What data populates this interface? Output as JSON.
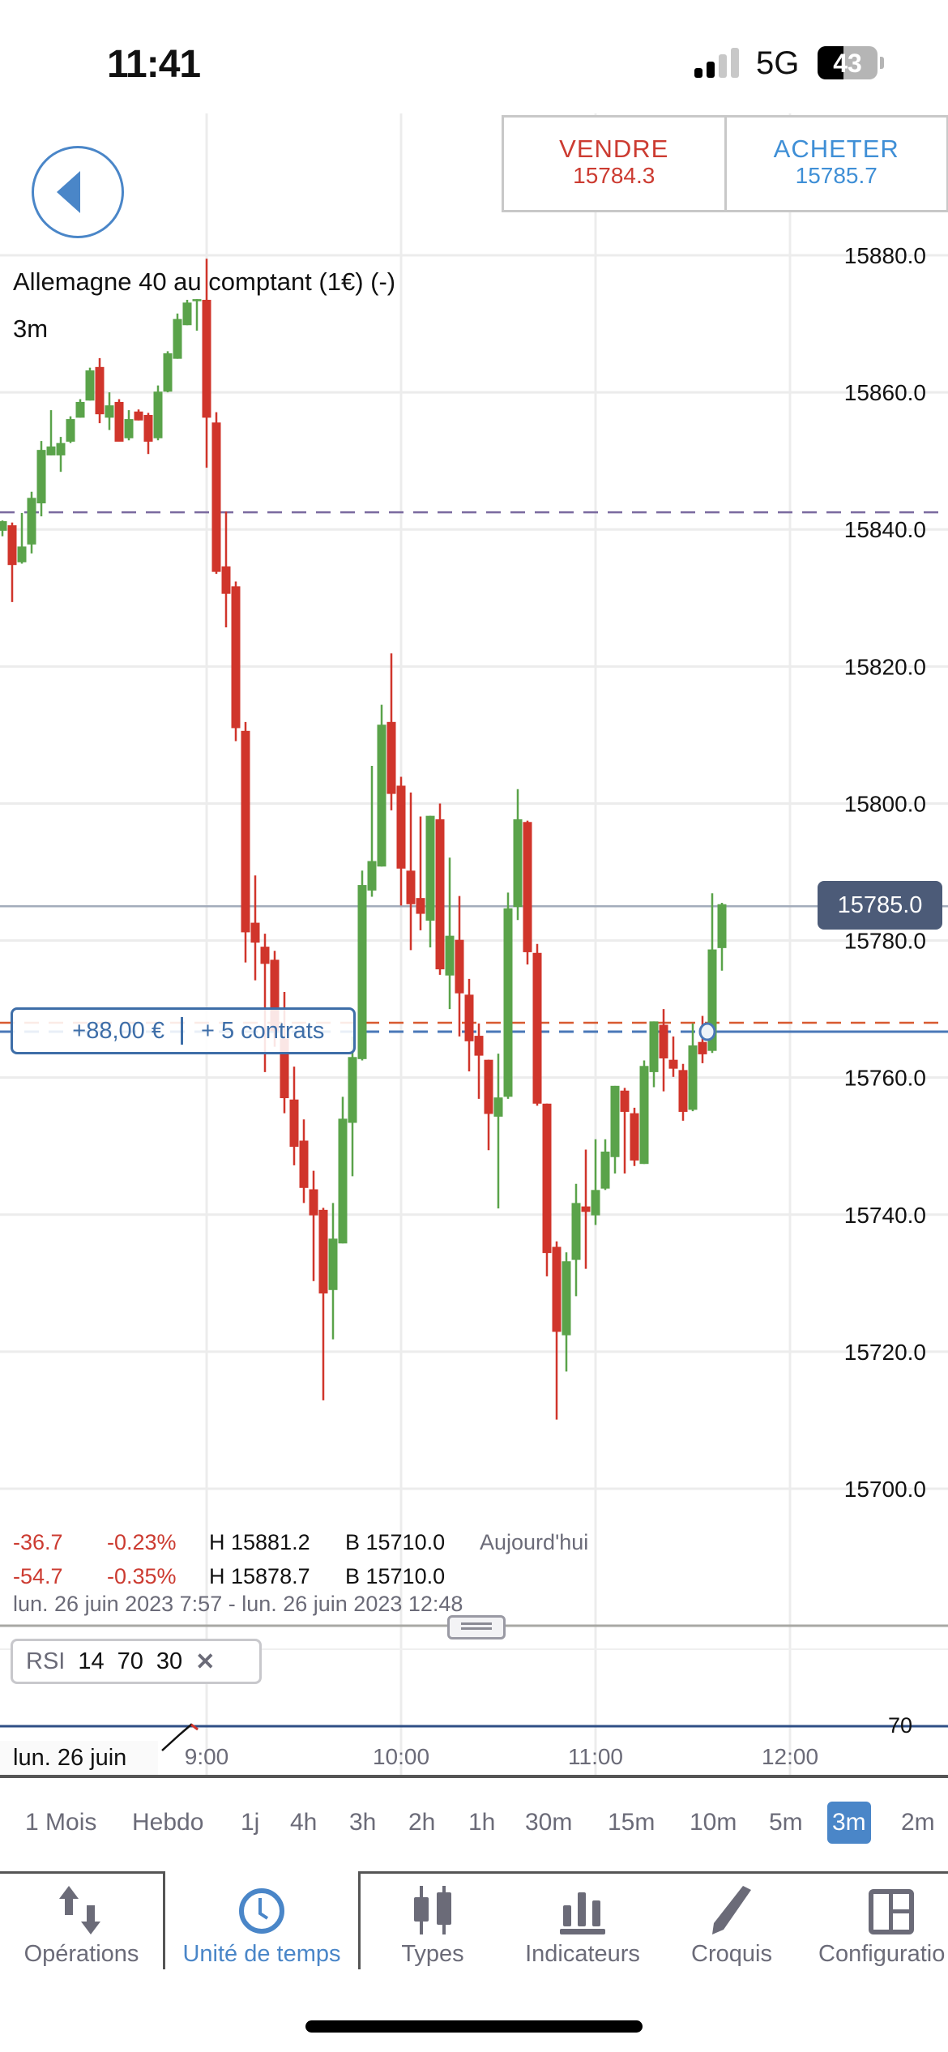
{
  "status_bar": {
    "time": "11:41",
    "network": "5G",
    "battery": "43",
    "battery_level": 0.43
  },
  "header": {
    "sell": {
      "label": "VENDRE",
      "price": "15784.3"
    },
    "buy": {
      "label": "ACHETER",
      "price": "15785.7"
    }
  },
  "instrument": {
    "title": "Allemagne 40 au comptant (1€) (-)",
    "timeframe": "3m"
  },
  "position": {
    "pnl": "+88,00 €",
    "contracts": "+ 5 contrats"
  },
  "current_price": "15785.0",
  "stats": {
    "row1": {
      "change": "-36.7",
      "pct": "-0.23%",
      "high": "H 15881.2",
      "low": "B 15710.0",
      "period": "Aujourd'hui"
    },
    "row2": {
      "change": "-54.7",
      "pct": "-0.35%",
      "high": "H 15878.7",
      "low": "B 15710.0"
    },
    "range": "lun. 26 juin 2023 7:57 - lun. 26 juin 2023 12:48"
  },
  "rsi": {
    "name": "RSI",
    "period": "14",
    "upper": "70",
    "lower": "30",
    "level_label": "70"
  },
  "timeframes": [
    "1 Mois",
    "Hebdo",
    "1j",
    "4h",
    "3h",
    "2h",
    "1h",
    "30m",
    "15m",
    "10m",
    "5m",
    "3m",
    "2m"
  ],
  "selected_timeframe": "3m",
  "tabs": [
    {
      "label": "Opérations",
      "icon": "arrows-up-down-icon"
    },
    {
      "label": "Unité de temps",
      "icon": "clock-icon",
      "active": true
    },
    {
      "label": "Types",
      "icon": "candlestick-icon"
    },
    {
      "label": "Indicateurs",
      "icon": "bar-chart-icon"
    },
    {
      "label": "Croquis",
      "icon": "pencil-icon"
    },
    {
      "label": "Configuratio",
      "icon": "layout-icon"
    }
  ],
  "colors": {
    "up": "#5aa34a",
    "down": "#d0352b",
    "accent": "#4a86c8",
    "sell": "#cc3b31",
    "buy": "#3f8fd6"
  },
  "chart_data": {
    "type": "candlestick",
    "interval": "3m",
    "date_label": "lun. 26 juin",
    "x_ticks": [
      "9:00",
      "10:00",
      "11:00",
      "12:00"
    ],
    "y_ticks": [
      "15880.0",
      "15860.0",
      "15840.0",
      "15820.0",
      "15800.0",
      "15780.0",
      "15760.0",
      "15740.0",
      "15720.0",
      "15700.0"
    ],
    "ylim": [
      15700,
      15880
    ],
    "grid": true,
    "lines": {
      "reference_dashed": 15842.5,
      "current": 15785.0,
      "order_dashed": 15768.0,
      "position": 15766.7
    },
    "candles_ohlc": [
      [
        15839.8,
        15841.3,
        15839.0,
        15841.2
      ],
      [
        15840.6,
        15841.0,
        15829.4,
        15834.8
      ],
      [
        15835.2,
        15842.4,
        15835.0,
        15837.5
      ],
      [
        15837.8,
        15845.5,
        15836.5,
        15844.6
      ],
      [
        15843.8,
        15852.9,
        15841.9,
        15851.6
      ],
      [
        15850.8,
        15857.4,
        15850.8,
        15852.1
      ],
      [
        15850.8,
        15853.5,
        15848.4,
        15852.6
      ],
      [
        15852.8,
        15856.5,
        15852.6,
        15856.1
      ],
      [
        15856.3,
        15859.0,
        15856.3,
        15858.6
      ],
      [
        15858.8,
        15863.6,
        15858.8,
        15863.2
      ],
      [
        15863.7,
        15865.0,
        15855.5,
        15856.8
      ],
      [
        15856.3,
        15860.0,
        15854.5,
        15858.1
      ],
      [
        15858.6,
        15859.0,
        15852.8,
        15852.8
      ],
      [
        15853.3,
        15857.4,
        15853.0,
        15856.1
      ],
      [
        15857.2,
        15857.5,
        15855.9,
        15855.9
      ],
      [
        15856.7,
        15857.0,
        15851.0,
        15852.8
      ],
      [
        15853.3,
        15861.0,
        15853.0,
        15860.1
      ],
      [
        15860.1,
        15866.0,
        15860.0,
        15865.7
      ],
      [
        15864.9,
        15871.5,
        15864.9,
        15870.7
      ],
      [
        15869.8,
        15873.5,
        15869.8,
        15873.1
      ],
      [
        15873.3,
        15873.6,
        15869.0,
        15873.6
      ],
      [
        15873.5,
        15879.5,
        15849.0,
        15856.3
      ],
      [
        15855.6,
        15857.1,
        15833.5,
        15833.8
      ],
      [
        15834.6,
        15842.6,
        15825.7,
        15830.6
      ],
      [
        15831.7,
        15832.4,
        15809.1,
        15811.0
      ],
      [
        15810.6,
        15811.9,
        15776.8,
        15781.2
      ],
      [
        15782.6,
        15789.5,
        15774.2,
        15779.7
      ],
      [
        15779.1,
        15781.0,
        15760.8,
        15776.6
      ],
      [
        15777.2,
        15778.5,
        15764.5,
        15766.8
      ],
      [
        15765.7,
        15772.5,
        15754.8,
        15757.0
      ],
      [
        15756.8,
        15761.6,
        15747.2,
        15749.9
      ],
      [
        15750.8,
        15753.9,
        15741.7,
        15743.9
      ],
      [
        15743.7,
        15746.4,
        15730.3,
        15739.9
      ],
      [
        15740.7,
        15741.0,
        15712.9,
        15728.5
      ],
      [
        15729.0,
        15741.7,
        15721.8,
        15736.5
      ],
      [
        15735.8,
        15757.2,
        15735.8,
        15754.0
      ],
      [
        15753.4,
        15766.0,
        15745.6,
        15763.0
      ],
      [
        15762.7,
        15790.2,
        15762.5,
        15788.1
      ],
      [
        15787.3,
        15805.5,
        15786.4,
        15791.6
      ],
      [
        15790.8,
        15814.4,
        15790.8,
        15811.5
      ],
      [
        15811.9,
        15821.9,
        15799.0,
        15801.4
      ],
      [
        15802.6,
        15803.9,
        15785.1,
        15790.5
      ],
      [
        15790.2,
        15801.6,
        15778.6,
        15785.3
      ],
      [
        15786.2,
        15798.1,
        15781.5,
        15783.9
      ],
      [
        15782.9,
        15798.2,
        15779.0,
        15798.2
      ],
      [
        15797.7,
        15800.0,
        15775.0,
        15775.8
      ],
      [
        15774.9,
        15792.1,
        15770.0,
        15780.7
      ],
      [
        15780.1,
        15786.5,
        15766.0,
        15772.3
      ],
      [
        15772.1,
        15774.4,
        15760.9,
        15765.3
      ],
      [
        15766.1,
        15767.9,
        15756.9,
        15763.2
      ],
      [
        15762.6,
        15762.6,
        15749.4,
        15754.7
      ],
      [
        15754.3,
        15763.5,
        15740.9,
        15757.1
      ],
      [
        15757.2,
        15787.0,
        15756.9,
        15784.7
      ],
      [
        15784.9,
        15802.1,
        15783.0,
        15797.7
      ],
      [
        15797.3,
        15797.5,
        15776.5,
        15778.3
      ],
      [
        15778.2,
        15779.5,
        15755.9,
        15756.2
      ],
      [
        15756.2,
        15756.2,
        15731.0,
        15734.4
      ],
      [
        15735.3,
        15736.1,
        15710.1,
        15722.9
      ],
      [
        15722.4,
        15734.5,
        15717.1,
        15733.2
      ],
      [
        15733.4,
        15744.5,
        15728.1,
        15741.7
      ],
      [
        15741.2,
        15749.5,
        15732.1,
        15740.4
      ],
      [
        15739.9,
        15751.0,
        15738.5,
        15743.6
      ],
      [
        15743.8,
        15751.0,
        15743.6,
        15749.2
      ],
      [
        15748.4,
        15758.8,
        15746.0,
        15758.8
      ],
      [
        15758.1,
        15758.5,
        15746.0,
        15755.0
      ],
      [
        15754.8,
        15755.6,
        15747.1,
        15747.9
      ],
      [
        15747.4,
        15762.5,
        15747.4,
        15761.7
      ],
      [
        15760.8,
        15768.2,
        15758.6,
        15768.2
      ],
      [
        15767.7,
        15770.0,
        15758.0,
        15762.8
      ],
      [
        15762.6,
        15766.0,
        15760.1,
        15761.3
      ],
      [
        15761.1,
        15762.0,
        15753.7,
        15755.0
      ],
      [
        15755.3,
        15767.9,
        15755.1,
        15764.7
      ],
      [
        15765.2,
        15769.0,
        15762.1,
        15763.4
      ],
      [
        15763.9,
        15786.9,
        15763.6,
        15778.7
      ],
      [
        15778.9,
        15785.5,
        15775.6,
        15785.3
      ]
    ]
  }
}
